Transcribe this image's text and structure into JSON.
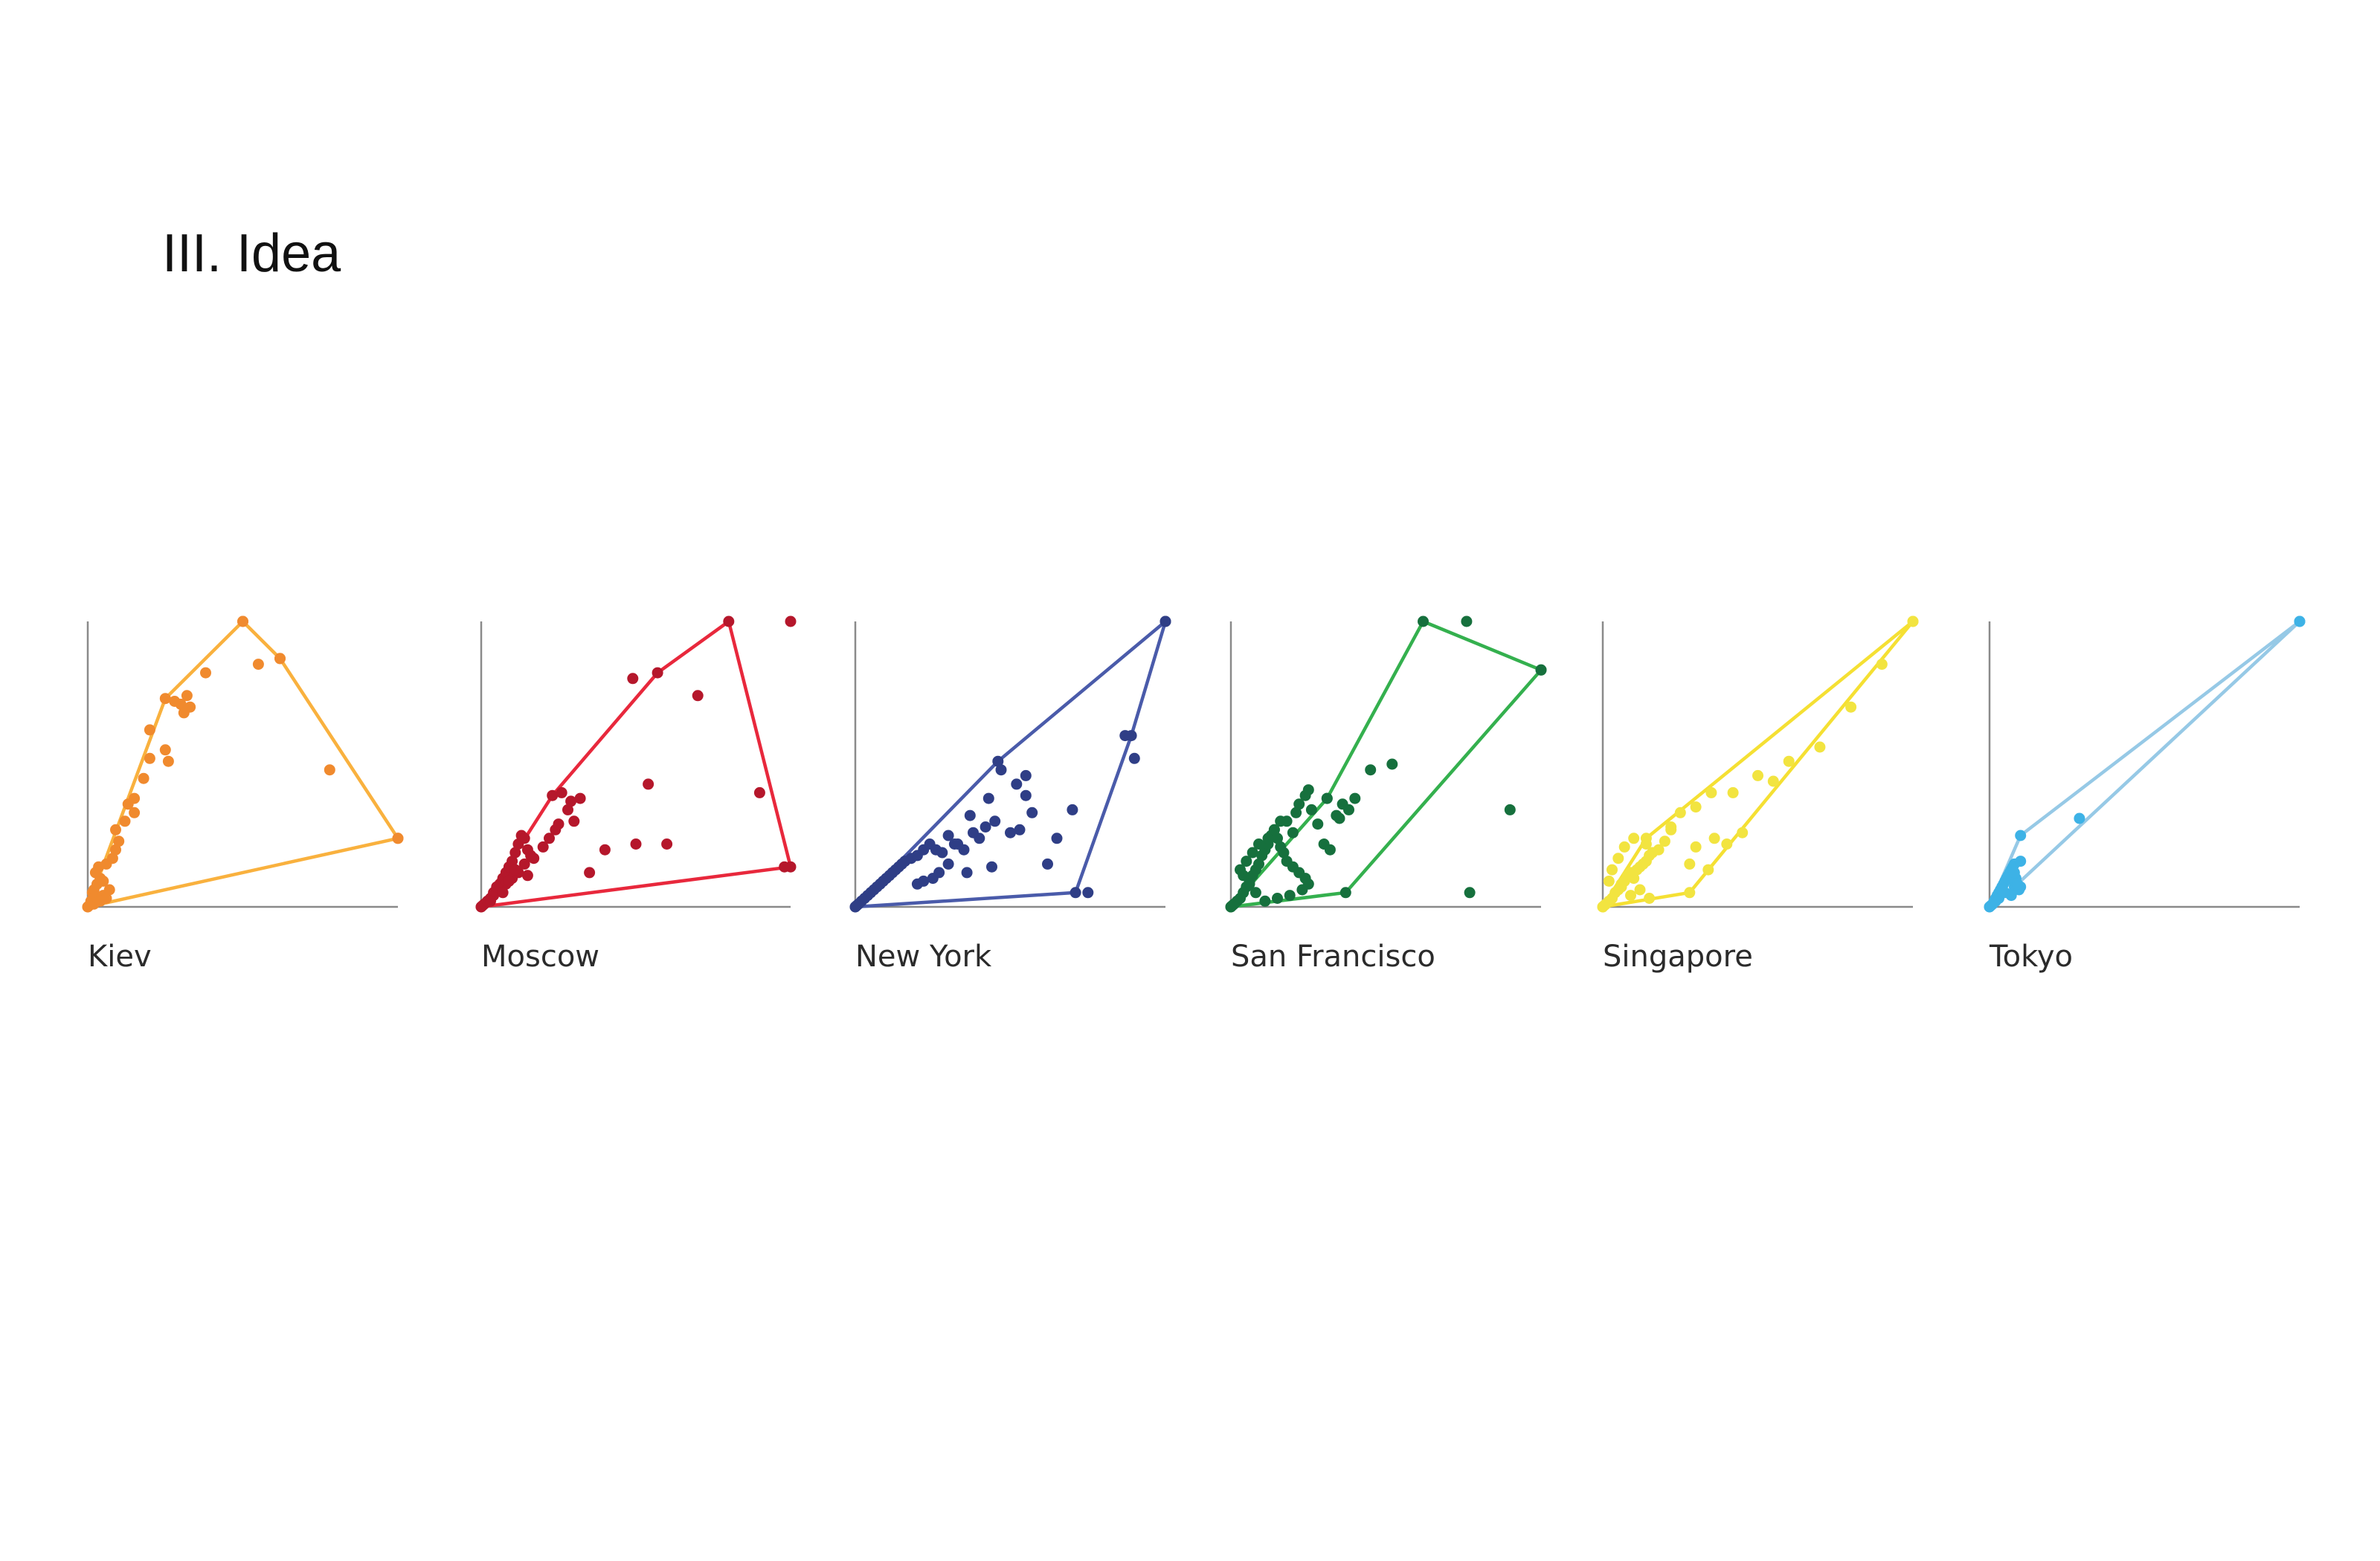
{
  "slide": {
    "title": "III. Idea"
  },
  "chart_data": [
    {
      "type": "scatter",
      "title": "Kiev",
      "color": "#F5A742",
      "hull_color": "#F9B13E",
      "point_color": "#F08A2E",
      "xlim": [
        0,
        100
      ],
      "ylim": [
        0,
        100
      ],
      "x": [
        0.5,
        1,
        2,
        3,
        1.5,
        4,
        5,
        2,
        6,
        3,
        4,
        5,
        7,
        2.5,
        3.5,
        6,
        8,
        9,
        10,
        9,
        12,
        15,
        13,
        15,
        18,
        20,
        25,
        26,
        30,
        28,
        32,
        20,
        31,
        33,
        38,
        50,
        55,
        62,
        78,
        100
      ],
      "y": [
        0.5,
        2,
        1,
        3,
        5,
        2,
        4,
        6,
        3,
        8,
        10,
        9,
        6,
        12,
        14,
        15,
        17,
        20,
        23,
        27,
        30,
        33,
        36,
        38,
        45,
        52,
        55,
        51,
        71,
        72,
        74,
        62,
        68,
        70,
        82,
        100,
        85,
        87,
        48,
        24
      ],
      "hull": [
        [
          0,
          0
        ],
        [
          25,
          73
        ],
        [
          50,
          100
        ],
        [
          62,
          87
        ],
        [
          100,
          24
        ],
        [
          0,
          0
        ]
      ]
    },
    {
      "type": "scatter",
      "title": "Moscow",
      "color": "#E8283C",
      "hull_color": "#E8283C",
      "point_color": "#B5172B",
      "xlim": [
        0,
        100
      ],
      "ylim": [
        0,
        100
      ],
      "x": [
        0.5,
        1,
        2,
        3,
        4,
        5,
        6,
        7,
        8,
        9,
        10,
        11,
        12,
        13,
        14,
        15,
        16,
        14,
        12,
        10,
        8,
        6,
        4,
        3,
        5,
        7,
        9,
        11,
        15,
        17,
        20,
        22,
        24,
        25,
        28,
        30,
        32,
        26,
        29,
        35,
        40,
        50,
        49,
        54,
        60,
        70,
        90,
        100,
        98
      ],
      "y": [
        0.5,
        1,
        2,
        3,
        5,
        6,
        8,
        10,
        12,
        14,
        16,
        19,
        22,
        25,
        24,
        20,
        18,
        15,
        12,
        10,
        8,
        6,
        4,
        2,
        7,
        5,
        9,
        13,
        11,
        17,
        21,
        24,
        27,
        29,
        34,
        30,
        38,
        40,
        37,
        12,
        20,
        22,
        80,
        43,
        22,
        74,
        40,
        100,
        14
      ],
      "hull": [
        [
          0,
          0
        ],
        [
          23,
          39
        ],
        [
          57,
          82
        ],
        [
          80,
          100
        ],
        [
          100,
          14
        ],
        [
          0,
          0
        ]
      ]
    },
    {
      "type": "scatter",
      "title": "New York",
      "color": "#3F51A3",
      "hull_color": "#4A5BAA",
      "point_color": "#2F3E86",
      "xlim": [
        0,
        100
      ],
      "ylim": [
        0,
        100
      ],
      "x": [
        0.5,
        1,
        2,
        3,
        4,
        5,
        6,
        7,
        8,
        9,
        10,
        11,
        12,
        13,
        14,
        15,
        16,
        18,
        20,
        22,
        24,
        26,
        28,
        30,
        32,
        20,
        22,
        25,
        27,
        30,
        35,
        40,
        42,
        45,
        50,
        53,
        55,
        43,
        47,
        38,
        36,
        44,
        33,
        37,
        52,
        55,
        57,
        62,
        65,
        70,
        87,
        90,
        100,
        75
      ],
      "y": [
        0.5,
        1,
        2,
        3,
        4,
        5,
        6,
        7,
        8,
        9,
        10,
        11,
        12,
        13,
        14,
        15,
        16,
        17,
        18,
        20,
        22,
        20,
        19,
        25,
        22,
        8,
        9,
        10,
        12,
        15,
        20,
        24,
        28,
        30,
        26,
        27,
        39,
        38,
        48,
        26,
        12,
        14,
        22,
        32,
        43,
        46,
        33,
        15,
        24,
        34,
        60,
        52,
        100,
        5
      ],
      "hull": [
        [
          0,
          0
        ],
        [
          46,
          51
        ],
        [
          100,
          100
        ],
        [
          89,
          60
        ],
        [
          71,
          5
        ],
        [
          0,
          0
        ]
      ]
    },
    {
      "type": "scatter",
      "title": "San Francisco",
      "color": "#2DB54F",
      "hull_color": "#34B04E",
      "point_color": "#16703D",
      "xlim": [
        0,
        100
      ],
      "ylim": [
        0,
        100
      ],
      "x": [
        0.5,
        1,
        2,
        3,
        4,
        5,
        6,
        7,
        8,
        9,
        10,
        11,
        12,
        13,
        14,
        15,
        16,
        17,
        18,
        20,
        22,
        24,
        25,
        23,
        19,
        15,
        11,
        8,
        6,
        4,
        3,
        5,
        7,
        9,
        12,
        14,
        16,
        18,
        20,
        21,
        22,
        24,
        25,
        26,
        28,
        30,
        32,
        34,
        36,
        38,
        31,
        35,
        40,
        45,
        52,
        76,
        100,
        77,
        90
      ],
      "y": [
        0.5,
        1,
        2,
        3,
        5,
        7,
        9,
        11,
        13,
        15,
        18,
        20,
        22,
        25,
        27,
        24,
        21,
        19,
        16,
        14,
        12,
        10,
        8,
        6,
        4,
        3,
        2,
        5,
        8,
        11,
        13,
        16,
        19,
        22,
        24,
        27,
        30,
        30,
        26,
        33,
        36,
        39,
        41,
        34,
        29,
        22,
        20,
        32,
        36,
        34,
        38,
        31,
        38,
        48,
        50,
        100,
        83,
        5,
        34
      ],
      "hull": [
        [
          0,
          0
        ],
        [
          31,
          38
        ],
        [
          62,
          100
        ],
        [
          100,
          83
        ],
        [
          37,
          5
        ],
        [
          0,
          0
        ]
      ]
    },
    {
      "type": "scatter",
      "title": "Singapore",
      "color": "#F5E33F",
      "hull_color": "#F5E033",
      "point_color": "#F2E440",
      "xlim": [
        0,
        100
      ],
      "ylim": [
        0,
        100
      ],
      "x": [
        0.5,
        1,
        2,
        3,
        4,
        5,
        6,
        7,
        8,
        9,
        10,
        11,
        12,
        13,
        14,
        15,
        16,
        18,
        14,
        10,
        7,
        5,
        3,
        2,
        6,
        9,
        12,
        15,
        20,
        22,
        25,
        30,
        28,
        22,
        30,
        34,
        36,
        40,
        42,
        35,
        45,
        50,
        55,
        60,
        70,
        80,
        90,
        100
      ],
      "y": [
        0.5,
        1,
        2,
        3,
        5,
        6,
        8,
        9,
        11,
        12,
        10,
        13,
        14,
        15,
        16,
        18,
        19,
        20,
        22,
        24,
        21,
        17,
        13,
        9,
        7,
        4,
        6,
        3,
        23,
        27,
        33,
        35,
        15,
        28,
        21,
        13,
        24,
        22,
        40,
        40,
        26,
        46,
        44,
        51,
        56,
        70,
        85,
        100
      ],
      "hull": [
        [
          0,
          0
        ],
        [
          14,
          24
        ],
        [
          100,
          100
        ],
        [
          28,
          5
        ],
        [
          0,
          0
        ]
      ]
    },
    {
      "type": "scatter",
      "title": "Tokyo",
      "color": "#3DB2E6",
      "hull_color": "#96C9E6",
      "point_color": "#3DB2E6",
      "xlim": [
        0,
        100
      ],
      "ylim": [
        0,
        100
      ],
      "x": [
        0.5,
        1,
        1.5,
        2,
        2.5,
        3,
        3.5,
        4,
        4.5,
        5,
        5.5,
        6,
        6.5,
        7,
        7.5,
        8,
        8.5,
        9,
        9.5,
        10,
        3,
        5,
        7,
        9,
        2,
        4,
        6,
        8,
        10,
        29,
        100
      ],
      "y": [
        0.5,
        1,
        2,
        3,
        4,
        5,
        6,
        7,
        8,
        9,
        10,
        11,
        12,
        13,
        14,
        15,
        10,
        8,
        6,
        7,
        3,
        5,
        4,
        8,
        2,
        6,
        10,
        12,
        16,
        31,
        100
      ],
      "hull": [
        [
          0,
          0
        ],
        [
          10,
          25
        ],
        [
          100,
          100
        ],
        [
          8,
          7
        ],
        [
          0,
          0
        ]
      ]
    }
  ]
}
